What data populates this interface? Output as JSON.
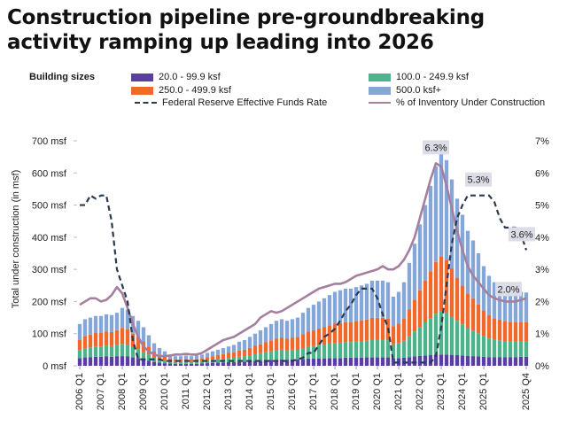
{
  "chart_data": {
    "type": "bar",
    "title": "Construction pipeline pre-groundbreaking activity ramping up leading into 2026",
    "legend_title": "Building sizes",
    "xlabel": "",
    "ylabel": "Total under construction (in msf)",
    "ylim": [
      0,
      700
    ],
    "y2lim": [
      0,
      7
    ],
    "y_ticks": [
      "0 msf",
      "100 msf",
      "200 msf",
      "300 msf",
      "400 msf",
      "500 msf",
      "600 msf",
      "700 msf"
    ],
    "y2_ticks": [
      "0%",
      "1%",
      "2%",
      "3%",
      "4%",
      "5%",
      "6%",
      "7%"
    ],
    "x_ticks": [
      "2006 Q1",
      "2007 Q1",
      "2008 Q1",
      "2009 Q1",
      "2010 Q1",
      "2011 Q1",
      "2012 Q1",
      "2013 Q1",
      "2014 Q1",
      "2015 Q1",
      "2016 Q1",
      "2017 Q1",
      "2018 Q1",
      "2019 Q1",
      "2020 Q1",
      "2021 Q1",
      "2022 Q1",
      "2023 Q1",
      "2024 Q1",
      "2025 Q1",
      "2025 Q4"
    ],
    "stack_series": [
      {
        "name": "20.0 - 99.9 ksf",
        "color": "#5b3fa0"
      },
      {
        "name": "100.0 - 249.9 ksf",
        "color": "#4db38c"
      },
      {
        "name": "250.0 - 499.9 ksf",
        "color": "#f0682a"
      },
      {
        "name": "500.0 ksf+",
        "color": "#85a7d8"
      }
    ],
    "stack_values": {
      "totals": [
        130,
        145,
        150,
        155,
        155,
        160,
        158,
        165,
        180,
        175,
        155,
        140,
        120,
        95,
        70,
        55,
        45,
        35,
        30,
        30,
        32,
        30,
        32,
        35,
        40,
        45,
        50,
        55,
        60,
        65,
        75,
        80,
        90,
        100,
        110,
        120,
        130,
        140,
        145,
        140,
        145,
        150,
        165,
        180,
        190,
        200,
        210,
        220,
        230,
        235,
        240,
        240,
        245,
        250,
        255,
        265,
        265,
        265,
        260,
        215,
        230,
        260,
        320,
        380,
        440,
        500,
        560,
        620,
        660,
        640,
        580,
        520,
        470,
        420,
        390,
        350,
        310,
        280,
        260,
        250,
        240,
        235,
        230,
        230,
        228
      ],
      "a": [
        24,
        26,
        27,
        28,
        28,
        29,
        28,
        30,
        30,
        29,
        26,
        24,
        20,
        16,
        12,
        10,
        8,
        7,
        6,
        6,
        6,
        6,
        6,
        7,
        8,
        9,
        10,
        10,
        11,
        11,
        12,
        13,
        14,
        15,
        16,
        17,
        18,
        19,
        20,
        19,
        20,
        20,
        21,
        22,
        22,
        23,
        23,
        24,
        24,
        24,
        25,
        25,
        25,
        25,
        26,
        26,
        26,
        26,
        26,
        23,
        24,
        25,
        27,
        29,
        31,
        32,
        33,
        35,
        35,
        35,
        34,
        33,
        32,
        31,
        30,
        29,
        28,
        27,
        27,
        27,
        27,
        27,
        27,
        28,
        28
      ],
      "b": [
        25,
        28,
        30,
        32,
        32,
        34,
        33,
        35,
        38,
        37,
        32,
        28,
        24,
        19,
        14,
        11,
        9,
        7,
        6,
        6,
        7,
        6,
        7,
        7,
        9,
        10,
        11,
        12,
        13,
        14,
        16,
        17,
        19,
        21,
        23,
        25,
        27,
        29,
        30,
        29,
        30,
        31,
        34,
        37,
        39,
        41,
        43,
        45,
        47,
        48,
        49,
        49,
        50,
        51,
        52,
        54,
        54,
        54,
        53,
        44,
        47,
        53,
        65,
        78,
        90,
        103,
        115,
        127,
        134,
        130,
        119,
        107,
        97,
        86,
        80,
        72,
        64,
        58,
        54,
        52,
        50,
        49,
        48,
        48,
        48
      ],
      "c": [
        32,
        38,
        40,
        42,
        42,
        44,
        44,
        46,
        50,
        48,
        42,
        38,
        32,
        25,
        18,
        14,
        11,
        9,
        7,
        7,
        8,
        7,
        8,
        9,
        10,
        11,
        13,
        14,
        16,
        17,
        19,
        20,
        23,
        26,
        28,
        31,
        34,
        36,
        38,
        36,
        38,
        39,
        43,
        47,
        50,
        52,
        55,
        57,
        60,
        61,
        62,
        62,
        64,
        65,
        66,
        69,
        69,
        69,
        68,
        56,
        60,
        68,
        83,
        99,
        114,
        130,
        146,
        161,
        170,
        165,
        150,
        134,
        121,
        108,
        100,
        90,
        80,
        72,
        67,
        65,
        62,
        61,
        60,
        60,
        59
      ]
    },
    "fed_funds_rate": [
      5.0,
      5.0,
      5.3,
      5.2,
      5.3,
      5.3,
      4.5,
      3.0,
      2.5,
      2.0,
      0.8,
      0.2,
      0.2,
      0.2,
      0.2,
      0.2,
      0.15,
      0.15,
      0.15,
      0.15,
      0.15,
      0.15,
      0.15,
      0.15,
      0.15,
      0.15,
      0.15,
      0.15,
      0.15,
      0.15,
      0.15,
      0.15,
      0.15,
      0.15,
      0.15,
      0.15,
      0.15,
      0.15,
      0.15,
      0.15,
      0.15,
      0.2,
      0.25,
      0.4,
      0.4,
      0.65,
      0.9,
      1.0,
      1.15,
      1.4,
      1.7,
      1.9,
      2.2,
      2.4,
      2.4,
      2.4,
      2.1,
      1.6,
      1.2,
      0.1,
      0.1,
      0.1,
      0.1,
      0.1,
      0.1,
      0.1,
      0.1,
      0.3,
      1.2,
      2.5,
      3.8,
      4.6,
      5.0,
      5.3,
      5.3,
      5.3,
      5.3,
      5.3,
      5.1,
      4.6,
      4.3,
      4.3,
      4.3,
      4.1,
      3.6
    ],
    "pct_inventory": [
      1.9,
      2.0,
      2.1,
      2.1,
      2.0,
      2.05,
      2.2,
      2.45,
      2.25,
      1.8,
      1.3,
      0.9,
      0.6,
      0.45,
      0.35,
      0.3,
      0.3,
      0.32,
      0.35,
      0.35,
      0.37,
      0.35,
      0.35,
      0.4,
      0.5,
      0.6,
      0.7,
      0.8,
      0.85,
      0.9,
      1.0,
      1.1,
      1.2,
      1.3,
      1.5,
      1.6,
      1.7,
      1.65,
      1.7,
      1.8,
      1.9,
      2.0,
      2.1,
      2.2,
      2.3,
      2.4,
      2.45,
      2.5,
      2.55,
      2.55,
      2.6,
      2.7,
      2.8,
      2.85,
      2.9,
      2.95,
      3.0,
      3.1,
      3.0,
      3.0,
      3.1,
      3.3,
      3.6,
      4.0,
      4.6,
      5.2,
      5.8,
      6.3,
      6.2,
      5.6,
      4.9,
      4.2,
      3.6,
      3.1,
      2.8,
      2.6,
      2.4,
      2.2,
      2.1,
      2.05,
      2.0,
      2.0,
      2.0,
      2.05,
      2.1
    ],
    "lines": [
      {
        "name": "Federal Reserve Effective Funds Rate",
        "color": "#2b3a4f",
        "style": "dashed"
      },
      {
        "name": "% of Inventory Under Construction",
        "color": "#a57f9e",
        "style": "solid"
      }
    ],
    "annotations": [
      {
        "text": "6.3%",
        "index": 67,
        "value": 6.3
      },
      {
        "text": "5.3%",
        "index": 75,
        "value": 5.3
      },
      {
        "text": "3.6%",
        "index": 84,
        "value": 3.6
      },
      {
        "text": "2.0%",
        "index": 80,
        "value": 2.0
      }
    ]
  }
}
